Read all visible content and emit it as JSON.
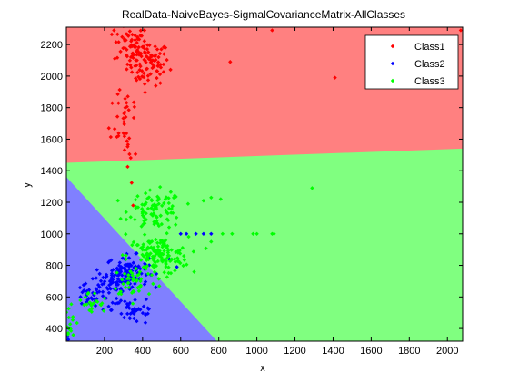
{
  "chart_data": {
    "type": "scatter",
    "title": "RealData-NaiveBayes-SigmalCovarianceMatrix-AllClasses",
    "xlabel": "x",
    "ylabel": "y",
    "xlim": [
      0,
      2080
    ],
    "ylim": [
      320,
      2310
    ],
    "xticks": [
      200,
      400,
      600,
      800,
      1000,
      1200,
      1400,
      1600,
      1800,
      2000
    ],
    "yticks": [
      400,
      600,
      800,
      1000,
      1200,
      1400,
      1600,
      1800,
      2000,
      2200
    ],
    "grid": false,
    "legend_position": "top-right",
    "regions": [
      {
        "label": "Class1",
        "color": "#ff8080",
        "boundary": [
          [
            0,
            1450
          ],
          [
            2080,
            1540
          ]
        ]
      },
      {
        "label": "Class2",
        "color": "#8080ff",
        "boundary": [
          [
            0,
            1360
          ],
          [
            790,
            320
          ]
        ]
      },
      {
        "label": "Class3",
        "color": "#80ff80"
      }
    ],
    "series": [
      {
        "name": "Class1",
        "color": "#ff0000",
        "marker": "diamond",
        "clusters": [
          {
            "center": [
              430,
              2080
            ],
            "spread": [
              55,
              70
            ],
            "count": 90
          },
          {
            "center": [
              330,
              2200
            ],
            "spread": [
              40,
              60
            ],
            "count": 50
          },
          {
            "center": [
              310,
              1780
            ],
            "spread": [
              40,
              130
            ],
            "count": 30
          },
          {
            "center": [
              320,
              1510
            ],
            "spread": [
              25,
              90
            ],
            "count": 10
          }
        ],
        "points": [
          [
            1080,
            2290
          ],
          [
            1410,
            1990
          ],
          [
            860,
            2090
          ],
          [
            2070,
            2290
          ],
          [
            350,
            1180
          ],
          [
            410,
            2290
          ],
          [
            250,
            2290
          ]
        ]
      },
      {
        "name": "Class2",
        "color": "#0000ff",
        "marker": "diamond",
        "clusters": [
          {
            "center": [
              320,
              760
            ],
            "spread": [
              55,
              50
            ],
            "count": 100
          },
          {
            "center": [
              220,
              650
            ],
            "spread": [
              70,
              50
            ],
            "count": 60
          },
          {
            "center": [
              360,
              520
            ],
            "spread": [
              60,
              50
            ],
            "count": 40
          },
          {
            "center": [
              110,
              600
            ],
            "spread": [
              40,
              40
            ],
            "count": 20
          }
        ],
        "points": [
          [
            720,
            1000
          ],
          [
            760,
            1000
          ],
          [
            680,
            1000
          ],
          [
            600,
            1000
          ],
          [
            630,
            1000
          ],
          [
            10,
            330
          ],
          [
            5,
            350
          ],
          [
            12,
            400
          ],
          [
            540,
            840
          ],
          [
            580,
            790
          ]
        ]
      },
      {
        "name": "Class3",
        "color": "#00ff00",
        "marker": "diamond",
        "clusters": [
          {
            "center": [
              470,
              1150
            ],
            "spread": [
              70,
              60
            ],
            "count": 90
          },
          {
            "center": [
              480,
              860
            ],
            "spread": [
              80,
              60
            ],
            "count": 140
          },
          {
            "center": [
              360,
              700
            ],
            "spread": [
              60,
              50
            ],
            "count": 40
          },
          {
            "center": [
              120,
              550
            ],
            "spread": [
              50,
              40
            ],
            "count": 25
          },
          {
            "center": [
              20,
              430
            ],
            "spread": [
              15,
              50
            ],
            "count": 15
          }
        ],
        "points": [
          [
            1290,
            1290
          ],
          [
            980,
            1000
          ],
          [
            1080,
            1000
          ],
          [
            1000,
            1000
          ],
          [
            870,
            1000
          ],
          [
            820,
            1000
          ],
          [
            760,
            950
          ],
          [
            760,
            1230
          ],
          [
            720,
            1210
          ],
          [
            810,
            1220
          ],
          [
            1090,
            1000
          ]
        ]
      }
    ]
  }
}
